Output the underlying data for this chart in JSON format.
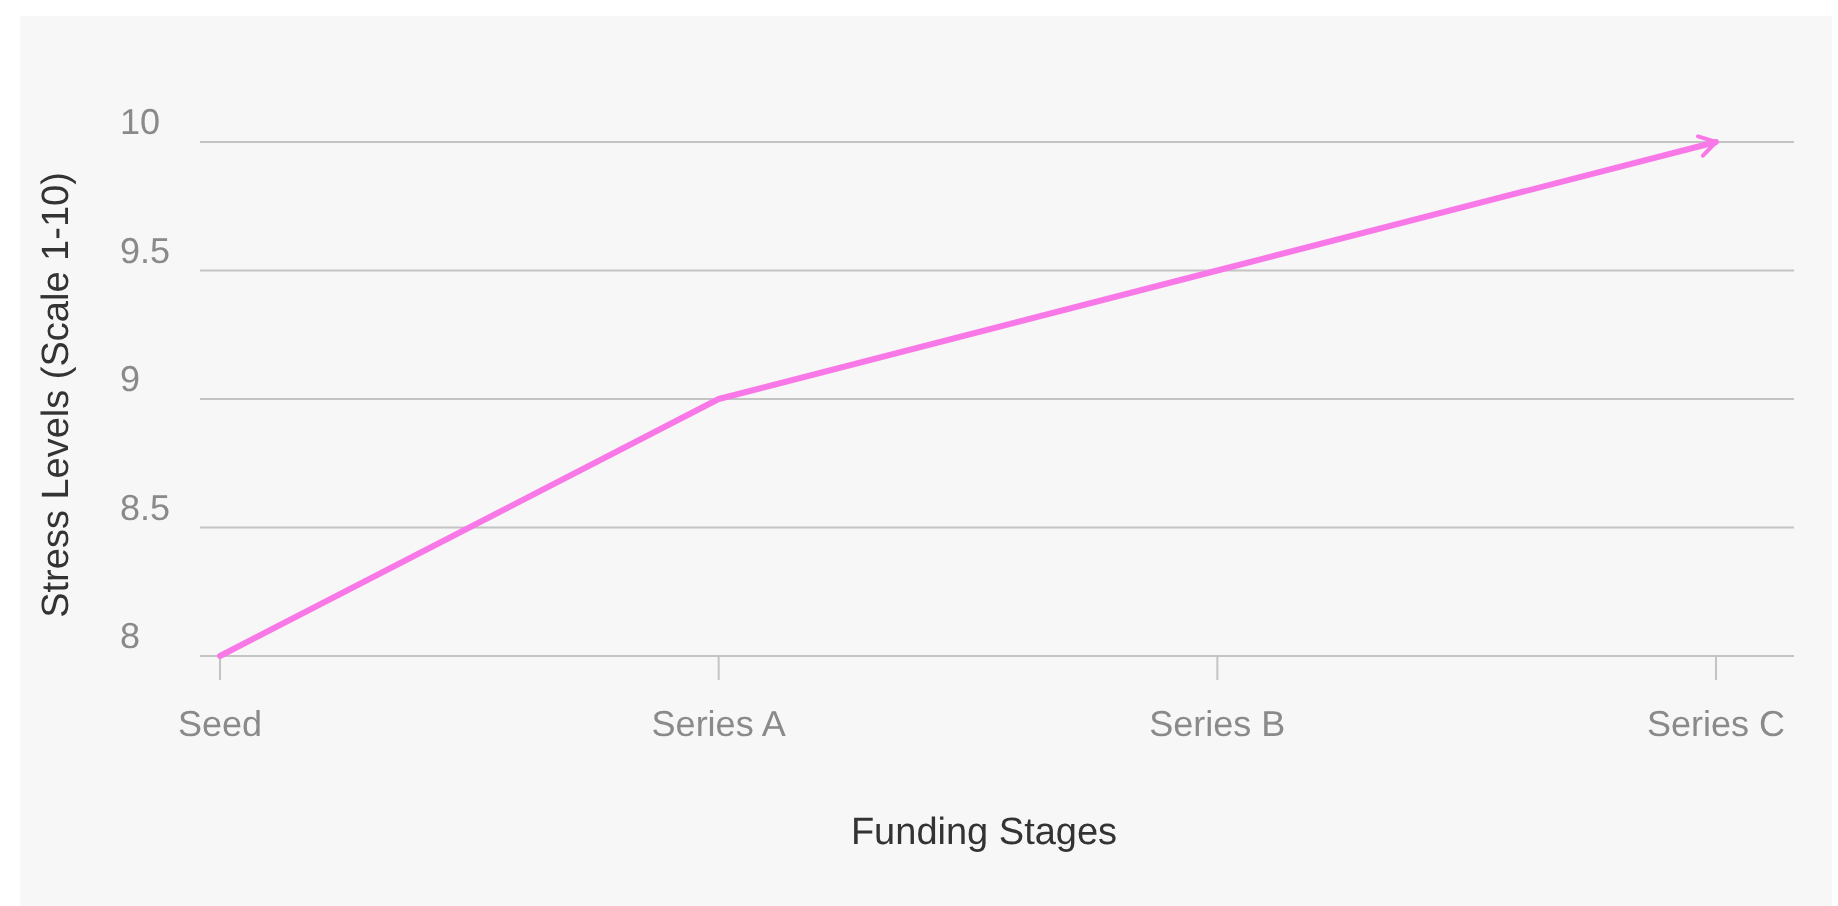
{
  "chart_data": {
    "type": "line",
    "xlabel": "Funding Stages",
    "ylabel": "Stress Levels (Scale 1-10)",
    "categories": [
      "Seed",
      "Series A",
      "Series B",
      "Series C"
    ],
    "series": [
      {
        "color": "#f978e8",
        "values": [
          8,
          9,
          9.5,
          10
        ]
      }
    ],
    "ylim": [
      8,
      10
    ],
    "yticks": [
      8,
      8.5,
      9,
      9.5,
      10
    ],
    "grid": "y",
    "marker": "none",
    "line_style": "solid"
  }
}
